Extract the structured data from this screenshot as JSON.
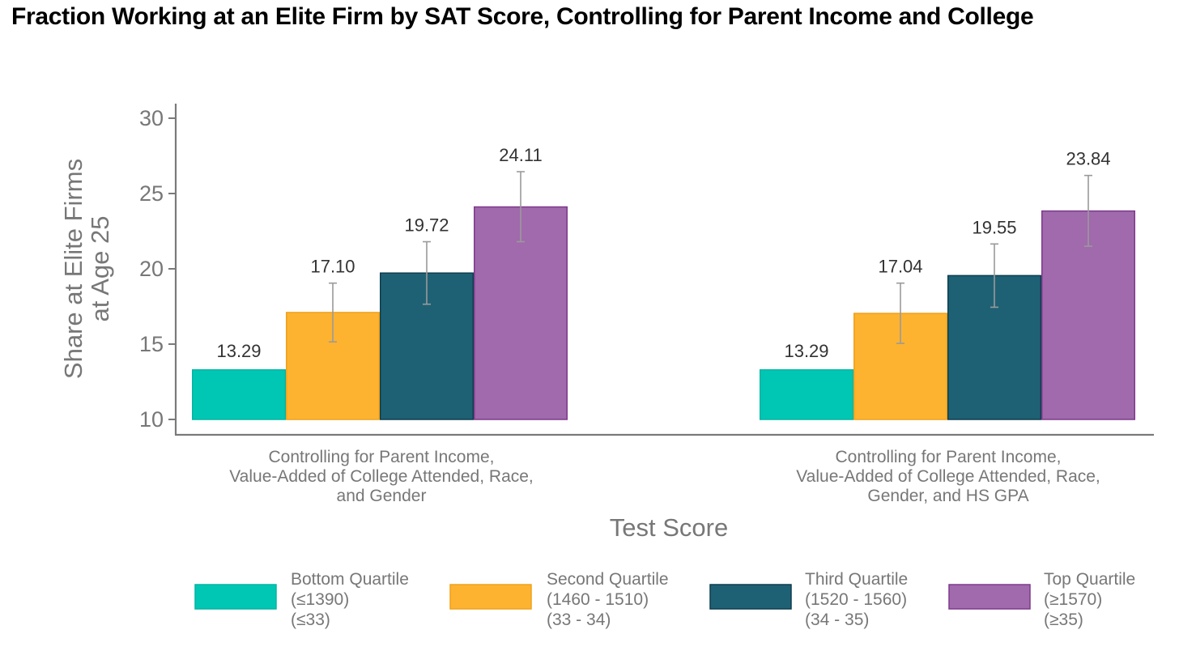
{
  "chart_data": {
    "type": "bar",
    "title": "Fraction Working at an Elite Firm by SAT Score, Controlling for Parent Income and College",
    "xlabel": "Test Score",
    "ylabel": [
      "Share at Elite Firms",
      "at Age 25"
    ],
    "ylim": [
      10,
      30
    ],
    "yticks": [
      "10",
      "15",
      "20",
      "25",
      "30"
    ],
    "categories": [
      [
        "Controlling for Parent Income,",
        "Value-Added of College Attended, Race,",
        "and Gender"
      ],
      [
        "Controlling for Parent Income,",
        "Value-Added of College Attended, Race,",
        "Gender, and HS GPA"
      ]
    ],
    "series": [
      {
        "name": [
          "Bottom Quartile",
          "(≤1390)",
          "(≤33)"
        ],
        "color": "#00c7b4",
        "stroke": "#00b5a3",
        "values": [
          13.29,
          13.29
        ],
        "labels": [
          "13.29",
          "13.29"
        ],
        "ci": null
      },
      {
        "name": [
          "Second Quartile",
          "(1460 - 1510)",
          "(33 - 34)"
        ],
        "color": "#fdb330",
        "stroke": "#f0a11c",
        "values": [
          17.1,
          17.04
        ],
        "labels": [
          "17.10",
          "17.04"
        ],
        "ci": [
          [
            15.15,
            19.05
          ],
          [
            15.05,
            19.05
          ]
        ]
      },
      {
        "name": [
          "Third Quartile",
          "(1520 - 1560)",
          "(34 - 35)"
        ],
        "color": "#1f6174",
        "stroke": "#0d3f4f",
        "values": [
          19.72,
          19.55
        ],
        "labels": [
          "19.72",
          "19.55"
        ],
        "ci": [
          [
            17.65,
            21.8
          ],
          [
            17.45,
            21.65
          ]
        ]
      },
      {
        "name": [
          "Top Quartile",
          "(≥1570)",
          "(≥35)"
        ],
        "color": "#a06aac",
        "stroke": "#7e3a8c",
        "values": [
          24.11,
          23.84
        ],
        "labels": [
          "24.11",
          "23.84"
        ],
        "ci": [
          [
            21.8,
            26.45
          ],
          [
            21.5,
            26.2
          ]
        ]
      }
    ],
    "error_bars": true,
    "grid": false,
    "legend": "bottom"
  }
}
